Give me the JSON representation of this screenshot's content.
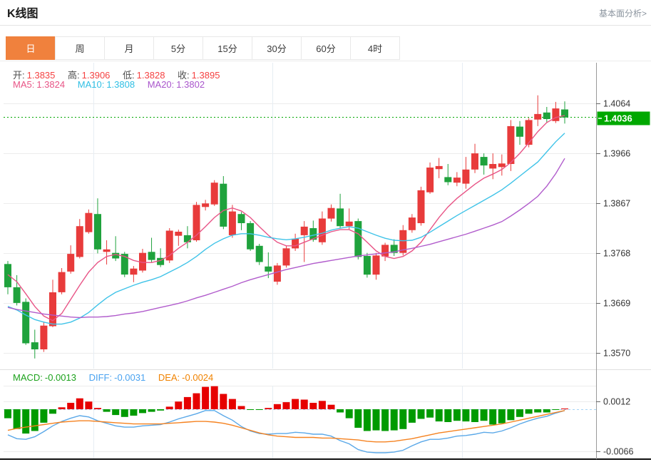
{
  "header": {
    "title": "K线图",
    "analysis_link": "基本面分析>"
  },
  "tabs": {
    "items": [
      "日",
      "周",
      "月",
      "5分",
      "15分",
      "30分",
      "60分",
      "4时"
    ],
    "selected": "日"
  },
  "legend": {
    "open_label": "开:",
    "open_value": "1.3835",
    "high_label": "高:",
    "high_value": "1.3906",
    "low_label": "低:",
    "low_value": "1.3828",
    "close_label": "收:",
    "close_value": "1.3895",
    "ma5_label": "MA5:",
    "ma5_value": "1.3824",
    "ma10_label": "MA10:",
    "ma10_value": "1.3808",
    "ma20_label": "MA20:",
    "ma20_value": "1.3802"
  },
  "macd_header": {
    "macd_label": "MACD:",
    "macd_value": "-0.0013",
    "diff_label": "DIFF:",
    "diff_value": "-0.0031",
    "dea_label": "DEA:",
    "dea_value": "-0.0024"
  },
  "colors": {
    "up": "#e83b3b",
    "down": "#1fa23c",
    "macd_up": "#e60000",
    "macd_down": "#009a00",
    "ma5": "#e85486",
    "ma10": "#3fc3e8",
    "ma20": "#b15ccc",
    "diff": "#5aa8e8",
    "dea": "#f58220",
    "tab_accent": "#f0813d",
    "current_price_bg": "#00a800",
    "grid": "#ececec",
    "vgrid": "#e6edf3",
    "axis_text": "#333333"
  },
  "chart_data": {
    "type": "candlestick",
    "title": "K线图",
    "period": "日",
    "y_axis": {
      "min": 1.357,
      "max": 1.4064,
      "ticks": [
        "1.4064",
        "1.3966",
        "1.3867",
        "1.3768",
        "1.3669",
        "1.3570"
      ]
    },
    "current_price": "1.4036",
    "candles": [
      [
        1.3746,
        1.3752,
        1.3686,
        1.37
      ],
      [
        1.37,
        1.3724,
        1.3664,
        1.3669
      ],
      [
        1.3671,
        1.3678,
        1.3586,
        1.3589
      ],
      [
        1.3591,
        1.3616,
        1.3559,
        1.3577
      ],
      [
        1.3577,
        1.3632,
        1.3572,
        1.3624
      ],
      [
        1.3623,
        1.3715,
        1.3621,
        1.369
      ],
      [
        1.369,
        1.3738,
        1.3686,
        1.373
      ],
      [
        1.3731,
        1.3783,
        1.3727,
        1.3766
      ],
      [
        1.376,
        1.3835,
        1.3757,
        1.3821
      ],
      [
        1.3809,
        1.3854,
        1.3806,
        1.3847
      ],
      [
        1.3845,
        1.3876,
        1.3767,
        1.3775
      ],
      [
        1.377,
        1.3793,
        1.3745,
        1.3775
      ],
      [
        1.3768,
        1.3801,
        1.3752,
        1.3757
      ],
      [
        1.3766,
        1.377,
        1.372,
        1.3725
      ],
      [
        1.3725,
        1.3742,
        1.371,
        1.3737
      ],
      [
        1.3733,
        1.3776,
        1.3729,
        1.3768
      ],
      [
        1.377,
        1.3798,
        1.3749,
        1.3754
      ],
      [
        1.3758,
        1.3777,
        1.374,
        1.3744
      ],
      [
        1.3753,
        1.3817,
        1.3748,
        1.3812
      ],
      [
        1.3802,
        1.3814,
        1.3782,
        1.381
      ],
      [
        1.3803,
        1.3821,
        1.3777,
        1.3789
      ],
      [
        1.3793,
        1.3869,
        1.379,
        1.3863
      ],
      [
        1.3859,
        1.3873,
        1.3852,
        1.3866
      ],
      [
        1.3864,
        1.3912,
        1.3861,
        1.3907
      ],
      [
        1.3905,
        1.392,
        1.3815,
        1.382
      ],
      [
        1.3803,
        1.3863,
        1.3798,
        1.385
      ],
      [
        1.3845,
        1.3849,
        1.3813,
        1.3827
      ],
      [
        1.3827,
        1.3831,
        1.3772,
        1.3775
      ],
      [
        1.3782,
        1.3786,
        1.3744,
        1.375
      ],
      [
        1.3741,
        1.3769,
        1.3718,
        1.3731
      ],
      [
        1.3711,
        1.3748,
        1.3705,
        1.3743
      ],
      [
        1.3743,
        1.3783,
        1.3739,
        1.3777
      ],
      [
        1.3777,
        1.3806,
        1.3772,
        1.3796
      ],
      [
        1.3803,
        1.3831,
        1.375,
        1.382
      ],
      [
        1.3817,
        1.3832,
        1.379,
        1.3794
      ],
      [
        1.3789,
        1.385,
        1.3784,
        1.3836
      ],
      [
        1.3836,
        1.3864,
        1.383,
        1.3857
      ],
      [
        1.3856,
        1.3885,
        1.3816,
        1.3821
      ],
      [
        1.3821,
        1.3856,
        1.3815,
        1.383
      ],
      [
        1.3831,
        1.3836,
        1.3755,
        1.376
      ],
      [
        1.3762,
        1.3768,
        1.3719,
        1.3725
      ],
      [
        1.3725,
        1.3768,
        1.3715,
        1.3763
      ],
      [
        1.3761,
        1.3788,
        1.3752,
        1.3784
      ],
      [
        1.3784,
        1.3795,
        1.3762,
        1.3768
      ],
      [
        1.3768,
        1.3823,
        1.3763,
        1.3813
      ],
      [
        1.3813,
        1.3845,
        1.3808,
        1.3838
      ],
      [
        1.3827,
        1.3899,
        1.3822,
        1.3892
      ],
      [
        1.3888,
        1.3947,
        1.3885,
        1.3937
      ],
      [
        1.3934,
        1.3956,
        1.3916,
        1.394
      ],
      [
        1.3918,
        1.3944,
        1.3902,
        1.3908
      ],
      [
        1.3907,
        1.3928,
        1.39,
        1.3917
      ],
      [
        1.3905,
        1.3958,
        1.3895,
        1.3933
      ],
      [
        1.3933,
        1.3984,
        1.3926,
        1.3965
      ],
      [
        1.3958,
        1.3965,
        1.3923,
        1.3941
      ],
      [
        1.3935,
        1.3965,
        1.3914,
        1.3944
      ],
      [
        1.3938,
        1.3963,
        1.3921,
        1.3945
      ],
      [
        1.3944,
        1.4031,
        1.393,
        1.4019
      ],
      [
        1.4018,
        1.4029,
        1.3982,
        1.3998
      ],
      [
        1.3982,
        1.4035,
        1.3977,
        1.4031
      ],
      [
        1.4032,
        1.408,
        1.4019,
        1.4043
      ],
      [
        1.4046,
        1.4057,
        1.4026,
        1.4033
      ],
      [
        1.4029,
        1.4067,
        1.4025,
        1.4054
      ],
      [
        1.4052,
        1.4068,
        1.4024,
        1.4036
      ]
    ],
    "ma5": [
      1.3725,
      1.3711,
      1.3687,
      1.3662,
      1.3643,
      1.3634,
      1.3648,
      1.3676,
      1.3704,
      1.373,
      1.3749,
      1.3761,
      1.3765,
      1.3761,
      1.3753,
      1.3749,
      1.3749,
      1.3753,
      1.3763,
      1.3777,
      1.3789,
      1.3803,
      1.382,
      1.3838,
      1.3852,
      1.3857,
      1.3851,
      1.3838,
      1.382,
      1.3803,
      1.3789,
      1.3782,
      1.3782,
      1.3789,
      1.3796,
      1.3803,
      1.381,
      1.3814,
      1.3814,
      1.3806,
      1.3789,
      1.3772,
      1.3761,
      1.3757,
      1.3761,
      1.3772,
      1.3789,
      1.3814,
      1.3838,
      1.3859,
      1.3876,
      1.389,
      1.3904,
      1.3916,
      1.3924,
      1.3933,
      1.3947,
      1.3965,
      1.3986,
      1.4008,
      1.4026,
      1.4036,
      1.404
    ],
    "ma10": [
      1.3662,
      1.3655,
      1.3645,
      1.3636,
      1.3631,
      1.3627,
      1.3627,
      1.3631,
      1.3639,
      1.365,
      1.3665,
      1.3679,
      1.369,
      1.3697,
      1.3704,
      1.371,
      1.3715,
      1.3721,
      1.373,
      1.3739,
      1.3749,
      1.3761,
      1.3775,
      1.3787,
      1.3796,
      1.3803,
      1.3806,
      1.3806,
      1.3803,
      1.3799,
      1.3796,
      1.3794,
      1.3796,
      1.3799,
      1.3803,
      1.3807,
      1.3813,
      1.3817,
      1.382,
      1.3817,
      1.381,
      1.3803,
      1.3797,
      1.3793,
      1.3792,
      1.3793,
      1.3799,
      1.3809,
      1.382,
      1.3831,
      1.3842,
      1.3852,
      1.3862,
      1.3872,
      1.3882,
      1.3893,
      1.3906,
      1.392,
      1.3934,
      1.3948,
      1.3968,
      1.3988,
      1.4005
    ],
    "ma20": [
      1.366,
      1.3656,
      1.3653,
      1.365,
      1.3647,
      1.3645,
      1.3643,
      1.3641,
      1.364,
      1.3641,
      1.3641,
      1.3642,
      1.3644,
      1.3647,
      1.3649,
      1.3652,
      1.3656,
      1.366,
      1.3664,
      1.3668,
      1.3673,
      1.3679,
      1.3684,
      1.369,
      1.3696,
      1.3702,
      1.3709,
      1.3715,
      1.372,
      1.3725,
      1.373,
      1.3735,
      1.3739,
      1.3743,
      1.3747,
      1.375,
      1.3753,
      1.3756,
      1.3759,
      1.3762,
      1.3764,
      1.3766,
      1.3768,
      1.377,
      1.3774,
      1.3777,
      1.3781,
      1.3785,
      1.379,
      1.3795,
      1.38,
      1.3805,
      1.3811,
      1.3817,
      1.3823,
      1.383,
      1.3841,
      1.3853,
      1.3866,
      1.388,
      1.39,
      1.3925,
      1.3955
    ],
    "macd": {
      "y_ticks": [
        "0.0012",
        "-0.0066"
      ],
      "hist": [
        -0.0014,
        -0.0031,
        -0.0038,
        -0.0034,
        -0.0021,
        -0.0007,
        0.0003,
        0.001,
        0.0017,
        0.0012,
        0.0002,
        -0.0004,
        -0.0009,
        -0.0012,
        -0.001,
        -0.0006,
        -0.0004,
        -0.0002,
        0.0004,
        0.0012,
        0.0019,
        0.0025,
        0.0035,
        0.0036,
        0.0024,
        0.0016,
        0.0005,
        -0.0001,
        -0.0001,
        0.0002,
        0.0008,
        0.0011,
        0.0016,
        0.0015,
        0.001,
        0.0013,
        0.0007,
        -0.0005,
        -0.0014,
        -0.0029,
        -0.0034,
        -0.0033,
        -0.0034,
        -0.0033,
        -0.0031,
        -0.0021,
        -0.0015,
        -0.0013,
        -0.0019,
        -0.002,
        -0.0018,
        -0.0019,
        -0.002,
        -0.0018,
        -0.0024,
        -0.0022,
        -0.0017,
        -0.0012,
        -0.0007,
        -0.0005,
        -0.0005,
        -0.0001,
        0.0001
      ],
      "diff": [
        -0.004,
        -0.0046,
        -0.0047,
        -0.0043,
        -0.0035,
        -0.0026,
        -0.0019,
        -0.0014,
        -0.001,
        -0.0012,
        -0.0018,
        -0.0022,
        -0.0026,
        -0.0028,
        -0.0028,
        -0.0026,
        -0.0025,
        -0.0024,
        -0.002,
        -0.0015,
        -0.0011,
        -0.0007,
        -0.0002,
        -0.0002,
        -0.001,
        -0.0017,
        -0.0027,
        -0.0034,
        -0.0038,
        -0.0039,
        -0.0038,
        -0.0038,
        -0.0036,
        -0.0037,
        -0.0039,
        -0.0039,
        -0.0042,
        -0.0049,
        -0.0054,
        -0.0063,
        -0.0067,
        -0.0068,
        -0.0068,
        -0.0067,
        -0.0064,
        -0.0057,
        -0.0051,
        -0.0047,
        -0.0047,
        -0.0045,
        -0.0042,
        -0.0041,
        -0.0039,
        -0.0036,
        -0.0037,
        -0.0034,
        -0.0029,
        -0.0023,
        -0.0018,
        -0.0014,
        -0.0011,
        -0.0006,
        -0.0002
      ],
      "dea": [
        -0.0033,
        -0.003,
        -0.0028,
        -0.0026,
        -0.0024,
        -0.0022,
        -0.002,
        -0.0019,
        -0.0018,
        -0.0018,
        -0.0019,
        -0.002,
        -0.0021,
        -0.0022,
        -0.0023,
        -0.0023,
        -0.0023,
        -0.0023,
        -0.0022,
        -0.0021,
        -0.002,
        -0.0019,
        -0.0019,
        -0.002,
        -0.0022,
        -0.0025,
        -0.0029,
        -0.0033,
        -0.0037,
        -0.004,
        -0.0042,
        -0.0043,
        -0.0044,
        -0.0044,
        -0.0044,
        -0.0045,
        -0.0045,
        -0.0046,
        -0.0047,
        -0.0048,
        -0.005,
        -0.0051,
        -0.0051,
        -0.005,
        -0.0048,
        -0.0046,
        -0.0043,
        -0.004,
        -0.0037,
        -0.0035,
        -0.0033,
        -0.0031,
        -0.0029,
        -0.0027,
        -0.0025,
        -0.0023,
        -0.002,
        -0.0017,
        -0.0014,
        -0.0011,
        -0.0008,
        -0.0005,
        -0.0002
      ]
    }
  }
}
